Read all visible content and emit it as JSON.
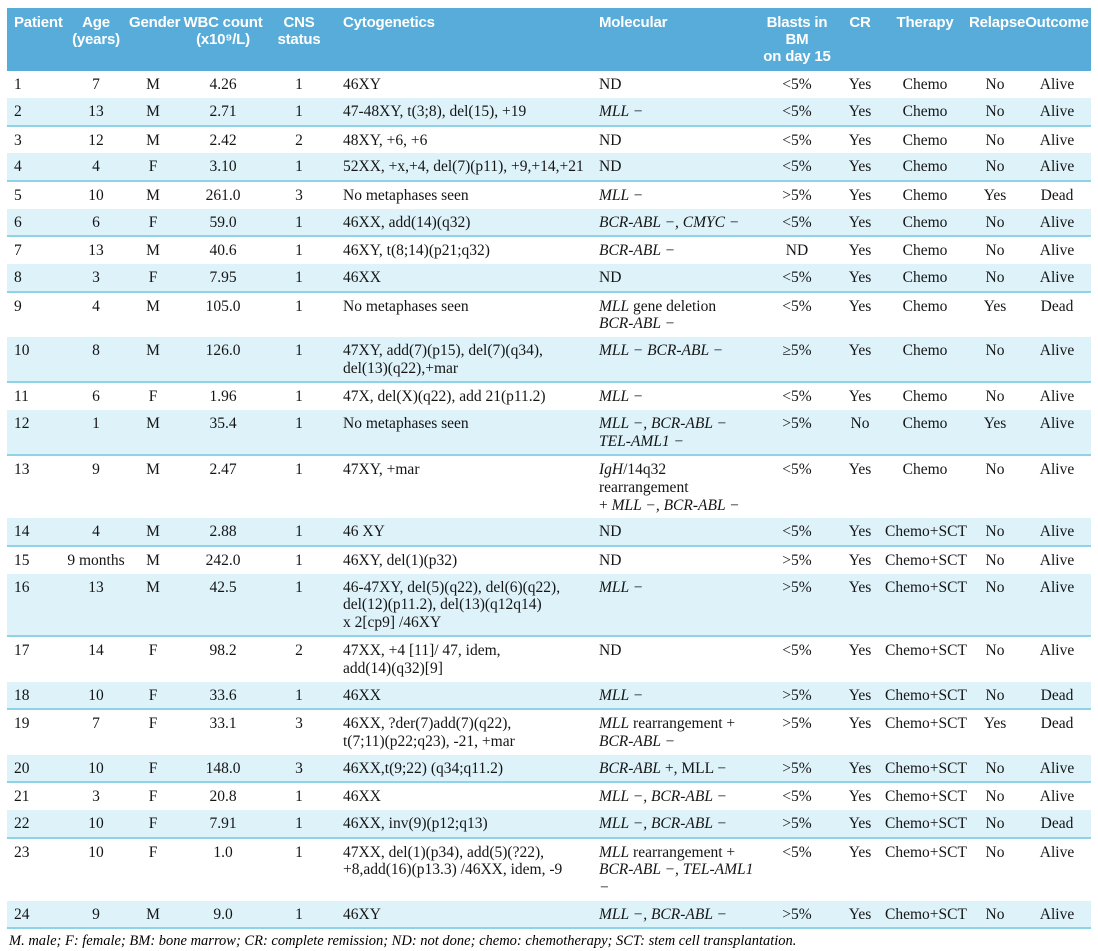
{
  "colors": {
    "header_bg": "#57acd9",
    "stripe_bg": "#def2fa",
    "separator": "#8fd3e9",
    "header_text": "#ffffff",
    "body_text": "#151515"
  },
  "table": {
    "columns": [
      {
        "key": "patient",
        "label": "Patient"
      },
      {
        "key": "age",
        "label": "Age\n(years)"
      },
      {
        "key": "gender",
        "label": "Gender"
      },
      {
        "key": "wbc",
        "label": "WBC count\n(x10⁹/L)"
      },
      {
        "key": "cns",
        "label": "CNS\nstatus"
      },
      {
        "key": "cytogenetics",
        "label": "Cytogenetics"
      },
      {
        "key": "molecular",
        "label": "Molecular"
      },
      {
        "key": "blasts",
        "label": "Blasts in BM\non day 15"
      },
      {
        "key": "cr",
        "label": "CR"
      },
      {
        "key": "therapy",
        "label": "Therapy"
      },
      {
        "key": "relapse",
        "label": "Relapse"
      },
      {
        "key": "outcome",
        "label": "Outcome"
      }
    ],
    "rows": [
      {
        "patient": "1",
        "age": "7",
        "gender": "M",
        "wbc": "4.26",
        "cns": "1",
        "cytogenetics": "46XY",
        "molecular": [
          [
            "ND",
            0
          ]
        ],
        "blasts": "<5%",
        "cr": "Yes",
        "therapy": "Chemo",
        "relapse": "No",
        "outcome": "Alive"
      },
      {
        "patient": "2",
        "age": "13",
        "gender": "M",
        "wbc": "2.71",
        "cns": "1",
        "cytogenetics": "47-48XY, t(3;8), del(15), +19",
        "molecular": [
          [
            "MLL −",
            1
          ]
        ],
        "blasts": "<5%",
        "cr": "Yes",
        "therapy": "Chemo",
        "relapse": "No",
        "outcome": "Alive"
      },
      {
        "patient": "3",
        "age": "12",
        "gender": "M",
        "wbc": "2.42",
        "cns": "2",
        "cytogenetics": "48XY, +6, +6",
        "molecular": [
          [
            "ND",
            0
          ]
        ],
        "blasts": "<5%",
        "cr": "Yes",
        "therapy": "Chemo",
        "relapse": "No",
        "outcome": "Alive"
      },
      {
        "patient": "4",
        "age": "4",
        "gender": "F",
        "wbc": "3.10",
        "cns": "1",
        "cytogenetics": "52XX, +x,+4, del(7)(p11), +9,+14,+21",
        "molecular": [
          [
            "ND",
            0
          ]
        ],
        "blasts": "<5%",
        "cr": "Yes",
        "therapy": "Chemo",
        "relapse": "No",
        "outcome": "Alive"
      },
      {
        "patient": "5",
        "age": "10",
        "gender": "M",
        "wbc": "261.0",
        "cns": "3",
        "cytogenetics": "No metaphases seen",
        "molecular": [
          [
            "MLL −",
            1
          ]
        ],
        "blasts": ">5%",
        "cr": "Yes",
        "therapy": "Chemo",
        "relapse": "Yes",
        "outcome": "Dead"
      },
      {
        "patient": "6",
        "age": "6",
        "gender": "F",
        "wbc": "59.0",
        "cns": "1",
        "cytogenetics": "46XX, add(14)(q32)",
        "molecular": [
          [
            "BCR-ABL −, CMYC −",
            1
          ]
        ],
        "blasts": "<5%",
        "cr": "Yes",
        "therapy": "Chemo",
        "relapse": "No",
        "outcome": "Alive"
      },
      {
        "patient": "7",
        "age": "13",
        "gender": "M",
        "wbc": "40.6",
        "cns": "1",
        "cytogenetics": "46XY, t(8;14)(p21;q32)",
        "molecular": [
          [
            "BCR-ABL −",
            1
          ]
        ],
        "blasts": "ND",
        "cr": "Yes",
        "therapy": "Chemo",
        "relapse": "No",
        "outcome": "Alive"
      },
      {
        "patient": "8",
        "age": "3",
        "gender": "F",
        "wbc": "7.95",
        "cns": "1",
        "cytogenetics": "46XX",
        "molecular": [
          [
            "ND",
            0
          ]
        ],
        "blasts": "<5%",
        "cr": "Yes",
        "therapy": "Chemo",
        "relapse": "No",
        "outcome": "Alive"
      },
      {
        "patient": "9",
        "age": "4",
        "gender": "M",
        "wbc": "105.0",
        "cns": "1",
        "cytogenetics": "No metaphases seen",
        "molecular": [
          [
            "MLL",
            1
          ],
          [
            " gene deletion\n",
            0
          ],
          [
            "BCR-ABL −",
            1
          ]
        ],
        "blasts": "<5%",
        "cr": "Yes",
        "therapy": "Chemo",
        "relapse": "Yes",
        "outcome": "Dead"
      },
      {
        "patient": "10",
        "age": "8",
        "gender": "M",
        "wbc": "126.0",
        "cns": "1",
        "cytogenetics": "47XY, add(7)(p15), del(7)(q34),\ndel(13)(q22),+mar",
        "molecular": [
          [
            "MLL − BCR-ABL −",
            1
          ]
        ],
        "blasts": "≥5%",
        "cr": "Yes",
        "therapy": "Chemo",
        "relapse": "No",
        "outcome": "Alive"
      },
      {
        "patient": "11",
        "age": "6",
        "gender": "F",
        "wbc": "1.96",
        "cns": "1",
        "cytogenetics": "47X, del(X)(q22), add 21(p11.2)",
        "molecular": [
          [
            "MLL −",
            1
          ]
        ],
        "blasts": "<5%",
        "cr": "Yes",
        "therapy": "Chemo",
        "relapse": "No",
        "outcome": "Alive"
      },
      {
        "patient": "12",
        "age": "1",
        "gender": "M",
        "wbc": "35.4",
        "cns": "1",
        "cytogenetics": "No metaphases seen",
        "molecular": [
          [
            "MLL −, BCR-ABL −\nTEL-AML1 −",
            1
          ]
        ],
        "blasts": ">5%",
        "cr": "No",
        "therapy": "Chemo",
        "relapse": "Yes",
        "outcome": "Alive"
      },
      {
        "patient": "13",
        "age": "9",
        "gender": "M",
        "wbc": "2.47",
        "cns": "1",
        "cytogenetics": "47XY, +mar",
        "molecular": [
          [
            "IgH",
            1
          ],
          [
            "/14q32 rearrangement\n+ ",
            0
          ],
          [
            "MLL −, BCR-ABL −",
            1
          ]
        ],
        "blasts": "<5%",
        "cr": "Yes",
        "therapy": "Chemo",
        "relapse": "No",
        "outcome": "Alive"
      },
      {
        "patient": "14",
        "age": "4",
        "gender": "M",
        "wbc": "2.88",
        "cns": "1",
        "cytogenetics": "46 XY",
        "molecular": [
          [
            "ND",
            0
          ]
        ],
        "blasts": "<5%",
        "cr": "Yes",
        "therapy": "Chemo+SCT",
        "relapse": "No",
        "outcome": "Alive"
      },
      {
        "patient": "15",
        "age": "9 months",
        "gender": "M",
        "wbc": "242.0",
        "cns": "1",
        "cytogenetics": "46XY, del(1)(p32)",
        "molecular": [
          [
            "ND",
            0
          ]
        ],
        "blasts": ">5%",
        "cr": "Yes",
        "therapy": "Chemo+SCT",
        "relapse": "No",
        "outcome": "Alive"
      },
      {
        "patient": "16",
        "age": "13",
        "gender": "M",
        "wbc": "42.5",
        "cns": "1",
        "cytogenetics": "46-47XY, del(5)(q22), del(6)(q22),\ndel(12)(p11.2), del(13)(q12q14)\nx 2[cp9] /46XY",
        "molecular": [
          [
            "MLL −",
            1
          ]
        ],
        "blasts": ">5%",
        "cr": "Yes",
        "therapy": "Chemo+SCT",
        "relapse": "No",
        "outcome": "Alive"
      },
      {
        "patient": "17",
        "age": "14",
        "gender": "F",
        "wbc": "98.2",
        "cns": "2",
        "cytogenetics": "47XX, +4 [11]/ 47, idem,\nadd(14)(q32)[9]",
        "molecular": [
          [
            "ND",
            0
          ]
        ],
        "blasts": "<5%",
        "cr": "Yes",
        "therapy": "Chemo+SCT",
        "relapse": "No",
        "outcome": "Alive"
      },
      {
        "patient": "18",
        "age": "10",
        "gender": "F",
        "wbc": "33.6",
        "cns": "1",
        "cytogenetics": "46XX",
        "molecular": [
          [
            "MLL −",
            1
          ]
        ],
        "blasts": ">5%",
        "cr": "Yes",
        "therapy": "Chemo+SCT",
        "relapse": "No",
        "outcome": "Dead"
      },
      {
        "patient": "19",
        "age": "7",
        "gender": "F",
        "wbc": "33.1",
        "cns": "3",
        "cytogenetics": "46XX, ?der(7)add(7)(q22),\nt(7;11)(p22;q23), -21, +mar",
        "molecular": [
          [
            "MLL",
            1
          ],
          [
            " rearrangement +\n",
            0
          ],
          [
            "BCR-ABL −",
            1
          ]
        ],
        "blasts": ">5%",
        "cr": "Yes",
        "therapy": "Chemo+SCT",
        "relapse": "Yes",
        "outcome": "Dead"
      },
      {
        "patient": "20",
        "age": "10",
        "gender": "F",
        "wbc": "148.0",
        "cns": "3",
        "cytogenetics": "46XX,t(9;22) (q34;q11.2)",
        "molecular": [
          [
            "BCR-ABL",
            1
          ],
          [
            " +, MLL −",
            0
          ]
        ],
        "blasts": ">5%",
        "cr": "Yes",
        "therapy": "Chemo+SCT",
        "relapse": "No",
        "outcome": "Alive"
      },
      {
        "patient": "21",
        "age": "3",
        "gender": "F",
        "wbc": "20.8",
        "cns": "1",
        "cytogenetics": "46XX",
        "molecular": [
          [
            "MLL −, BCR-ABL −",
            1
          ]
        ],
        "blasts": "<5%",
        "cr": "Yes",
        "therapy": "Chemo+SCT",
        "relapse": "No",
        "outcome": "Alive"
      },
      {
        "patient": "22",
        "age": "10",
        "gender": "F",
        "wbc": "7.91",
        "cns": "1",
        "cytogenetics": "46XX, inv(9)(p12;q13)",
        "molecular": [
          [
            "MLL −, BCR-ABL −",
            1
          ]
        ],
        "blasts": ">5%",
        "cr": "Yes",
        "therapy": "Chemo+SCT",
        "relapse": "No",
        "outcome": "Dead"
      },
      {
        "patient": "23",
        "age": "10",
        "gender": "F",
        "wbc": "1.0",
        "cns": "1",
        "cytogenetics": "47XX, del(1)(p34), add(5)(?22),\n+8,add(16)(p13.3) /46XX, idem, -9",
        "molecular": [
          [
            "MLL",
            1
          ],
          [
            " rearrangement +\n",
            0
          ],
          [
            "BCR-ABL −, TEL-AML1 −",
            1
          ]
        ],
        "blasts": "<5%",
        "cr": "Yes",
        "therapy": "Chemo+SCT",
        "relapse": "No",
        "outcome": "Alive"
      },
      {
        "patient": "24",
        "age": "9",
        "gender": "M",
        "wbc": "9.0",
        "cns": "1",
        "cytogenetics": "46XY",
        "molecular": [
          [
            "MLL −, BCR-ABL −",
            1
          ]
        ],
        "blasts": ">5%",
        "cr": "Yes",
        "therapy": "Chemo+SCT",
        "relapse": "No",
        "outcome": "Alive"
      }
    ],
    "footnote": "M. male; F: female; BM: bone marrow; CR: complete remission; ND: not done; chemo: chemotherapy; SCT: stem cell transplantation."
  }
}
